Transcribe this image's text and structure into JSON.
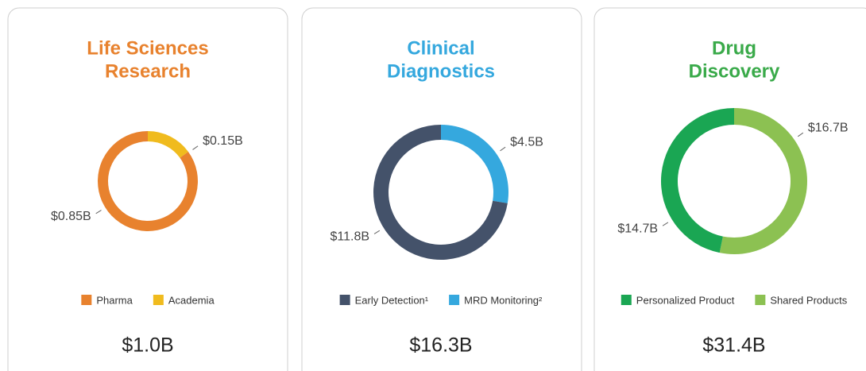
{
  "chart_data": [
    {
      "type": "donut",
      "title": [
        "Life Sciences",
        "Research"
      ],
      "title_color": "#e8822e",
      "series": [
        {
          "name": "Pharma",
          "color": "#e8822e",
          "values": [
            0.85
          ],
          "value_labels": [
            "$0.85B"
          ]
        },
        {
          "name": "Academia",
          "color": "#f0bb1e",
          "values": [
            0.15
          ],
          "value_labels": [
            "$0.15B"
          ]
        }
      ],
      "total": "$1.0B"
    },
    {
      "type": "donut",
      "title": [
        "Clinical",
        "Diagnostics"
      ],
      "title_color": "#35a8de",
      "series": [
        {
          "name": "Early Detection¹",
          "color": "#44526a",
          "values": [
            11.8
          ],
          "value_labels": [
            "$11.8B"
          ]
        },
        {
          "name": "MRD Monitoring²",
          "color": "#35a8de",
          "values": [
            4.5
          ],
          "value_labels": [
            "$4.5B"
          ]
        }
      ],
      "total": "$16.3B"
    },
    {
      "type": "donut",
      "title": [
        "Drug",
        "Discovery"
      ],
      "title_color": "#3aaa4a",
      "series": [
        {
          "name": "Personalized Product",
          "color": "#1aa653",
          "values": [
            14.7
          ],
          "value_labels": [
            "$14.7B"
          ]
        },
        {
          "name": "Shared Products",
          "color": "#8cc152",
          "values": [
            16.7
          ],
          "value_labels": [
            "$16.7B"
          ]
        }
      ],
      "total": "$31.4B"
    }
  ]
}
